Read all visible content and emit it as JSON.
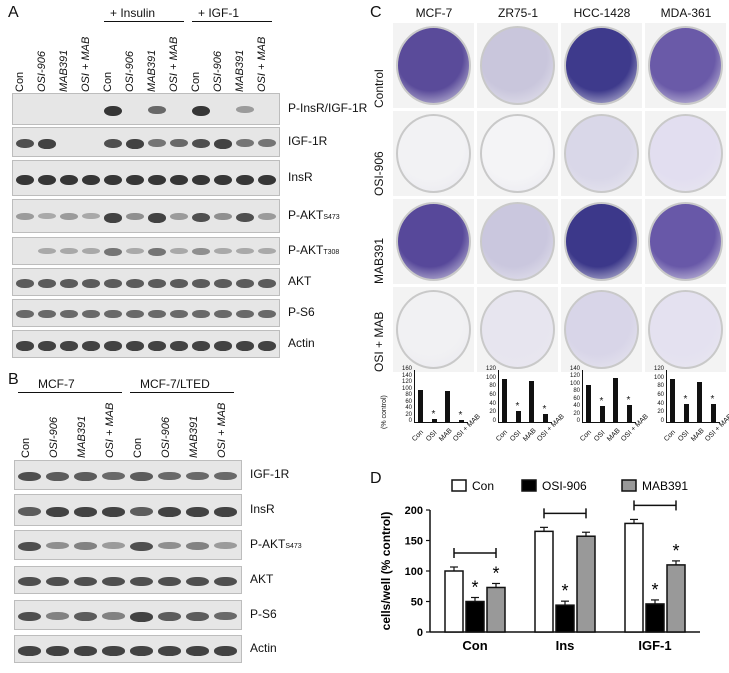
{
  "panelA": {
    "letter": "A",
    "group_labels": [
      "+ Insulin",
      "+ IGF-1"
    ],
    "lanes": [
      "Con",
      "OSI-906",
      "MAB391",
      "OSI + MAB",
      "Con",
      "OSI-906",
      "MAB391",
      "OSI + MAB",
      "Con",
      "OSI-906",
      "MAB391",
      "OSI + MAB"
    ],
    "rows": [
      {
        "label": "P-InsR/IGF-1R",
        "sub": ""
      },
      {
        "label": "IGF-1R",
        "sub": ""
      },
      {
        "label": "InsR",
        "sub": ""
      },
      {
        "label": "P-AKT",
        "sub": "S473"
      },
      {
        "label": "P-AKT",
        "sub": "T308"
      },
      {
        "label": "AKT",
        "sub": ""
      },
      {
        "label": "P-S6",
        "sub": ""
      },
      {
        "label": "Actin",
        "sub": ""
      }
    ]
  },
  "panelB": {
    "letter": "B",
    "group_labels": [
      "MCF-7",
      "MCF-7/LTED"
    ],
    "lanes": [
      "Con",
      "OSI-906",
      "MAB391",
      "OSI + MAB",
      "Con",
      "OSI-906",
      "MAB391",
      "OSI + MAB"
    ],
    "rows": [
      {
        "label": "IGF-1R",
        "sub": ""
      },
      {
        "label": "InsR",
        "sub": ""
      },
      {
        "label": "P-AKT",
        "sub": "S473"
      },
      {
        "label": "AKT",
        "sub": ""
      },
      {
        "label": "P-S6",
        "sub": ""
      },
      {
        "label": "Actin",
        "sub": ""
      }
    ]
  },
  "panelC": {
    "letter": "C",
    "cell_lines": [
      "MCF-7",
      "ZR75-1",
      "HCC-1428",
      "MDA-361"
    ],
    "treatments": [
      "Control",
      "OSI-906",
      "MAB391",
      "OSI + MAB"
    ],
    "ylabel": "(% control)",
    "categories": [
      "Con",
      "OSI",
      "MAB",
      "OSI + MAB"
    ],
    "star": "*",
    "mini_charts": [
      {
        "yticks": [
          0,
          20,
          40,
          60,
          80,
          100,
          120,
          140,
          160
        ],
        "ymax": 160,
        "values": [
          100,
          8,
          95,
          6
        ],
        "stars": [
          false,
          true,
          false,
          true
        ]
      },
      {
        "yticks": [
          0,
          20,
          40,
          60,
          80,
          100,
          120
        ],
        "ymax": 120,
        "values": [
          100,
          25,
          95,
          18
        ],
        "stars": [
          false,
          true,
          false,
          true
        ]
      },
      {
        "yticks": [
          0,
          20,
          40,
          60,
          80,
          100,
          120,
          140
        ],
        "ymax": 140,
        "values": [
          100,
          42,
          118,
          46
        ],
        "stars": [
          false,
          true,
          false,
          true
        ]
      },
      {
        "yticks": [
          0,
          20,
          40,
          60,
          80,
          100,
          120
        ],
        "ymax": 120,
        "values": [
          100,
          42,
          92,
          42
        ],
        "stars": [
          false,
          true,
          false,
          true
        ]
      }
    ]
  },
  "panelD": {
    "letter": "D",
    "chart_data": {
      "type": "bar",
      "categories": [
        "Con",
        "Ins",
        "IGF-1"
      ],
      "series": [
        {
          "name": "Con",
          "values": [
            100,
            165,
            178
          ],
          "color": "#ffffff"
        },
        {
          "name": "OSI-906",
          "values": [
            50,
            44,
            46
          ],
          "color": "#000000"
        },
        {
          "name": "MAB391",
          "values": [
            73,
            157,
            110
          ],
          "color": "#999999"
        }
      ],
      "ylabel": "cells/well (% control)",
      "ylim": [
        0,
        200
      ],
      "yticks": [
        0,
        50,
        100,
        150,
        200
      ],
      "star": "*",
      "significant": [
        [
          false,
          true,
          true
        ],
        [
          false,
          true,
          false
        ],
        [
          false,
          true,
          true
        ]
      ],
      "legend_placement": "top"
    }
  }
}
